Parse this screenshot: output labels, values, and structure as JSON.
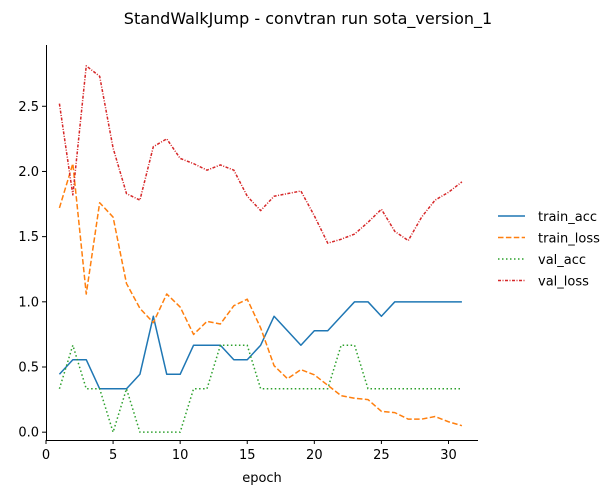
{
  "chart_data": {
    "type": "line",
    "title": "StandWalkJump - convtran run sota_version_1",
    "xlabel": "epoch",
    "ylabel": "",
    "xlim": [
      0,
      32.2
    ],
    "ylim": [
      -0.06,
      2.97
    ],
    "xticks": [
      0,
      5,
      10,
      15,
      20,
      25,
      30
    ],
    "yticks": [
      0.0,
      0.5,
      1.0,
      1.5,
      2.0,
      2.5
    ],
    "ytick_labels": [
      "0.0",
      "0.5",
      "1.0",
      "1.5",
      "2.0",
      "2.5"
    ],
    "grid": false,
    "legend_position": "right",
    "x": [
      1,
      2,
      3,
      4,
      5,
      6,
      7,
      8,
      9,
      10,
      11,
      12,
      13,
      14,
      15,
      16,
      17,
      18,
      19,
      20,
      21,
      22,
      23,
      24,
      25,
      26,
      27,
      28,
      29,
      30,
      31
    ],
    "series": [
      {
        "name": "train_acc",
        "color": "#1f77b4",
        "dash": "solid",
        "values": [
          0.444,
          0.556,
          0.556,
          0.333,
          0.333,
          0.333,
          0.444,
          0.889,
          0.444,
          0.444,
          0.667,
          0.667,
          0.667,
          0.556,
          0.556,
          0.667,
          0.889,
          0.778,
          0.667,
          0.778,
          0.778,
          0.889,
          1.0,
          1.0,
          0.889,
          1.0,
          1.0,
          1.0,
          1.0,
          1.0,
          1.0
        ]
      },
      {
        "name": "train_loss",
        "color": "#ff7f0e",
        "dash": "dashed",
        "values": [
          1.72,
          2.06,
          1.06,
          1.76,
          1.65,
          1.14,
          0.95,
          0.84,
          1.06,
          0.96,
          0.75,
          0.85,
          0.83,
          0.97,
          1.02,
          0.8,
          0.51,
          0.41,
          0.48,
          0.44,
          0.36,
          0.28,
          0.26,
          0.25,
          0.16,
          0.15,
          0.1,
          0.1,
          0.12,
          0.08,
          0.05
        ]
      },
      {
        "name": "val_acc",
        "color": "#2ca02c",
        "dash": "dotted",
        "values": [
          0.333,
          0.667,
          0.333,
          0.333,
          0.0,
          0.333,
          0.0,
          0.0,
          0.0,
          0.0,
          0.333,
          0.333,
          0.667,
          0.667,
          0.667,
          0.333,
          0.333,
          0.333,
          0.333,
          0.333,
          0.333,
          0.667,
          0.667,
          0.333,
          0.333,
          0.333,
          0.333,
          0.333,
          0.333,
          0.333,
          0.333
        ]
      },
      {
        "name": "val_loss",
        "color": "#d62728",
        "dash": "dashdot",
        "values": [
          2.52,
          1.82,
          2.81,
          2.73,
          2.18,
          1.83,
          1.78,
          2.19,
          2.25,
          2.1,
          2.06,
          2.01,
          2.05,
          2.01,
          1.81,
          1.7,
          1.81,
          1.83,
          1.85,
          1.66,
          1.45,
          1.48,
          1.52,
          1.61,
          1.71,
          1.54,
          1.47,
          1.65,
          1.78,
          1.84,
          1.92
        ]
      }
    ]
  }
}
